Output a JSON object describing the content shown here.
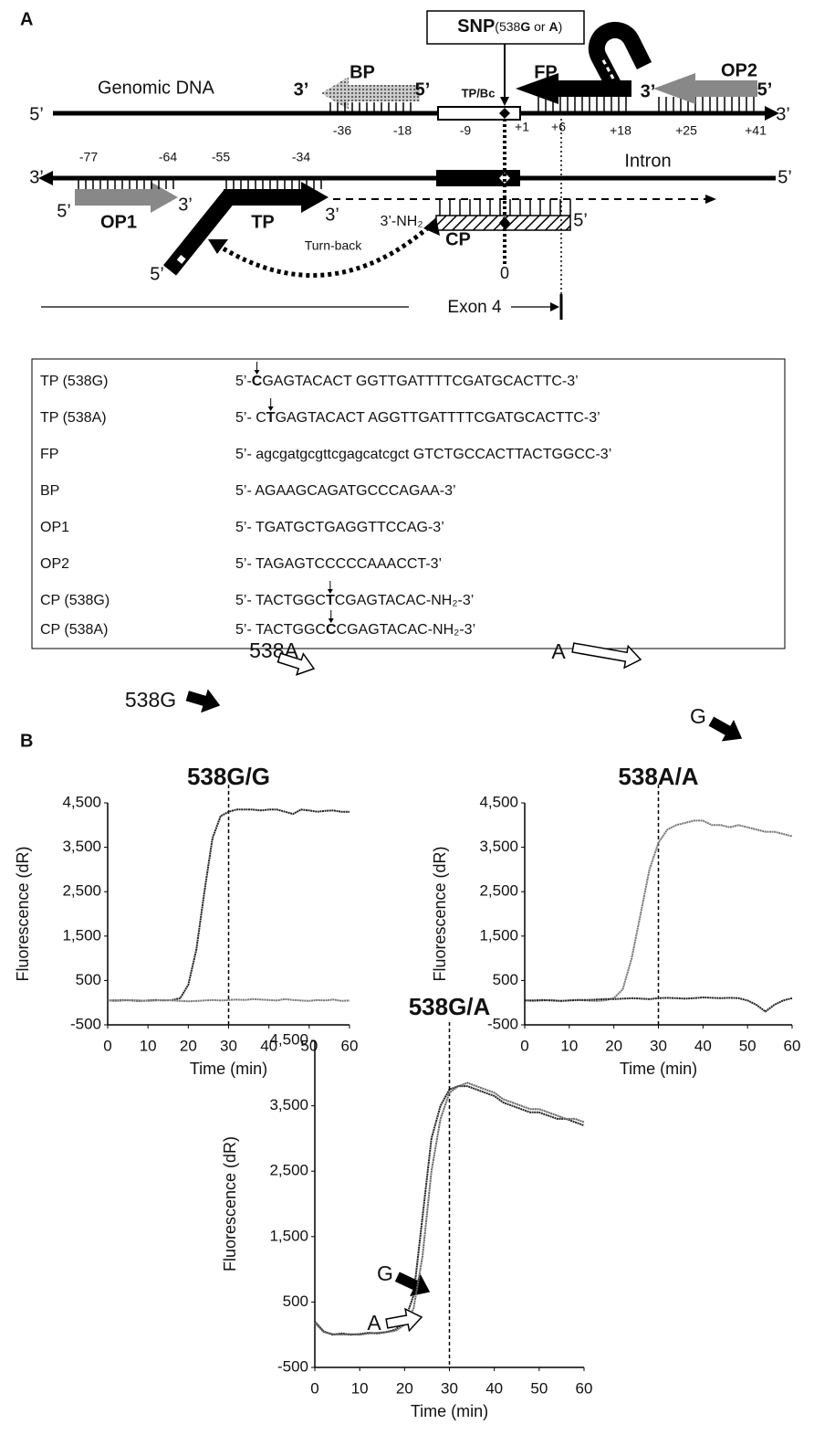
{
  "panel_labels": [
    "A",
    "B"
  ],
  "panel_a": {
    "snp_label": [
      "SNP",
      "(538",
      "G",
      " or ",
      "A",
      ")"
    ],
    "labels": [
      "Genomic DNA",
      "5’",
      "3’",
      "3’",
      "BP",
      "5’",
      "TP/Bc",
      "FP",
      "3’",
      "OP2",
      "5’",
      "-36",
      "-18",
      "-9",
      "+1",
      "+6",
      "+18",
      "+25",
      "+41",
      "-77",
      "-64",
      "-55",
      "-34",
      "3’",
      "Intron",
      "5’",
      "5’",
      "3’",
      "OP1",
      "TP",
      "3’",
      "3’-NH₂",
      "5’",
      "CP",
      "Turn-back",
      "5’",
      "0",
      "Exon 4"
    ],
    "table": {
      "rows": [
        {
          "name": "TP (538G)",
          "pre": "5’-",
          "bold": "C",
          "post": "GAGTACACT GGTTGATTTTCGATGCACTTC-3’"
        },
        {
          "name": "TP (538A)",
          "pre": "5’- C",
          "bold": "T",
          "post": "GAGTACACT AGGTTGATTTTCGATGCACTTC-3’"
        },
        {
          "name": "FP",
          "sequence": "5’- agcgatgcgttcgagcatcgct GTCTGCCACTTACTGGCC-3’"
        },
        {
          "name": "BP",
          "sequence": "5’- AGAAGCAGATGCCCAGAA-3’"
        },
        {
          "name": "OP1",
          "sequence": "5’- TGATGCTGAGGTTCCAG-3’"
        },
        {
          "name": "OP2",
          "sequence": "5’- TAGAGTCCCCCAAACCT-3’"
        },
        {
          "name": "CP (538G)",
          "pre": "5’- TACTGGC",
          "bold": "T",
          "post": "CGAGTACAC-NH₂-3’"
        },
        {
          "name": "CP (538A)",
          "pre": "5’- TACTGGC",
          "bold": "C",
          "post": "CGAGTACAC-NH₂-3’"
        }
      ]
    }
  },
  "chart_data": [
    {
      "type": "line",
      "title": "538G/G",
      "x_label": "Time (min)",
      "y_label": "Fluorescence (dR)",
      "x": [
        0,
        2,
        4,
        6,
        8,
        10,
        12,
        14,
        16,
        18,
        20,
        22,
        24,
        26,
        28,
        30,
        32,
        34,
        36,
        38,
        40,
        42,
        44,
        46,
        48,
        50,
        52,
        54,
        56,
        58,
        60
      ],
      "xlim": [
        0,
        60
      ],
      "xticks": [
        0,
        10,
        20,
        30,
        40,
        50,
        60
      ],
      "ylim": [
        -500,
        4500
      ],
      "yticks": [
        -500,
        500,
        {
          "value": 1500,
          "label": "1,500"
        },
        {
          "value": 2500,
          "label": "2,500"
        },
        {
          "value": 3500,
          "label": "3,500"
        },
        {
          "value": 4500,
          "label": "4,500"
        }
      ],
      "vline": 30,
      "series": [
        {
          "name": "538G",
          "color": "#222222",
          "values": [
            50,
            50,
            60,
            50,
            40,
            50,
            60,
            50,
            60,
            100,
            400,
            1200,
            2500,
            3700,
            4200,
            4300,
            4350,
            4350,
            4350,
            4330,
            4350,
            4350,
            4300,
            4250,
            4350,
            4330,
            4300,
            4320,
            4330,
            4300,
            4300
          ]
        },
        {
          "name": "538A",
          "color": "#777777",
          "values": [
            50,
            40,
            50,
            60,
            50,
            40,
            50,
            60,
            50,
            40,
            30,
            40,
            50,
            60,
            50,
            60,
            70,
            60,
            80,
            70,
            60,
            50,
            80,
            60,
            50,
            40,
            60,
            50,
            70,
            40,
            50
          ]
        }
      ]
    },
    {
      "type": "line",
      "title": "538A/A",
      "x_label": "Time (min)",
      "y_label": "Fluorescence (dR)",
      "x": [
        0,
        2,
        4,
        6,
        8,
        10,
        12,
        14,
        16,
        18,
        20,
        22,
        24,
        26,
        28,
        30,
        32,
        34,
        36,
        38,
        40,
        42,
        44,
        46,
        48,
        50,
        52,
        54,
        56,
        58,
        60
      ],
      "xlim": [
        0,
        60
      ],
      "xticks": [
        0,
        10,
        20,
        30,
        40,
        50,
        60
      ],
      "ylim": [
        -500,
        4500
      ],
      "yticks": [
        -500,
        500,
        {
          "value": 1500,
          "label": "1,500"
        },
        {
          "value": 2500,
          "label": "2,500"
        },
        {
          "value": 3500,
          "label": "3,500"
        },
        {
          "value": 4500,
          "label": "4,500"
        }
      ],
      "vline": 30,
      "series": [
        {
          "name": "A",
          "color": "#777777",
          "values": [
            50,
            40,
            50,
            60,
            40,
            50,
            60,
            50,
            40,
            50,
            100,
            300,
            1000,
            2000,
            3000,
            3600,
            3900,
            4000,
            4050,
            4100,
            4100,
            4000,
            4000,
            3950,
            4000,
            3950,
            3900,
            3850,
            3850,
            3800,
            3750
          ]
        },
        {
          "name": "G",
          "color": "#222222",
          "values": [
            50,
            50,
            60,
            50,
            40,
            50,
            60,
            60,
            70,
            80,
            80,
            90,
            100,
            90,
            80,
            100,
            110,
            100,
            90,
            100,
            120,
            110,
            100,
            110,
            100,
            50,
            -50,
            -200,
            -50,
            50,
            100
          ]
        }
      ]
    },
    {
      "type": "line",
      "title": "538G/A",
      "x_label": "Time (min)",
      "y_label": "Fluorescence (dR)",
      "x": [
        0,
        2,
        4,
        6,
        8,
        10,
        12,
        14,
        16,
        18,
        20,
        22,
        24,
        26,
        28,
        30,
        32,
        34,
        36,
        38,
        40,
        42,
        44,
        46,
        48,
        50,
        52,
        54,
        56,
        58,
        60
      ],
      "xlim": [
        0,
        60
      ],
      "xticks": [
        0,
        10,
        20,
        30,
        40,
        50,
        60
      ],
      "ylim": [
        -500,
        4500
      ],
      "yticks": [
        -500,
        500,
        {
          "value": 1500,
          "label": "1,500"
        },
        {
          "value": 2500,
          "label": "2,500"
        },
        {
          "value": 3500,
          "label": "3,500"
        },
        {
          "value": 4500,
          "label": "4,500"
        }
      ],
      "vline": 30,
      "series": [
        {
          "name": "G",
          "color": "#222222",
          "values": [
            200,
            50,
            0,
            20,
            0,
            10,
            30,
            20,
            40,
            80,
            200,
            600,
            1800,
            3000,
            3500,
            3750,
            3800,
            3800,
            3750,
            3700,
            3650,
            3550,
            3500,
            3450,
            3400,
            3400,
            3350,
            3300,
            3300,
            3250,
            3200
          ]
        },
        {
          "name": "A",
          "color": "#666666",
          "values": [
            180,
            40,
            10,
            0,
            10,
            0,
            20,
            30,
            40,
            60,
            150,
            400,
            1200,
            2500,
            3300,
            3700,
            3800,
            3850,
            3800,
            3750,
            3700,
            3600,
            3550,
            3500,
            3450,
            3450,
            3400,
            3350,
            3300,
            3300,
            3250
          ]
        }
      ]
    }
  ]
}
